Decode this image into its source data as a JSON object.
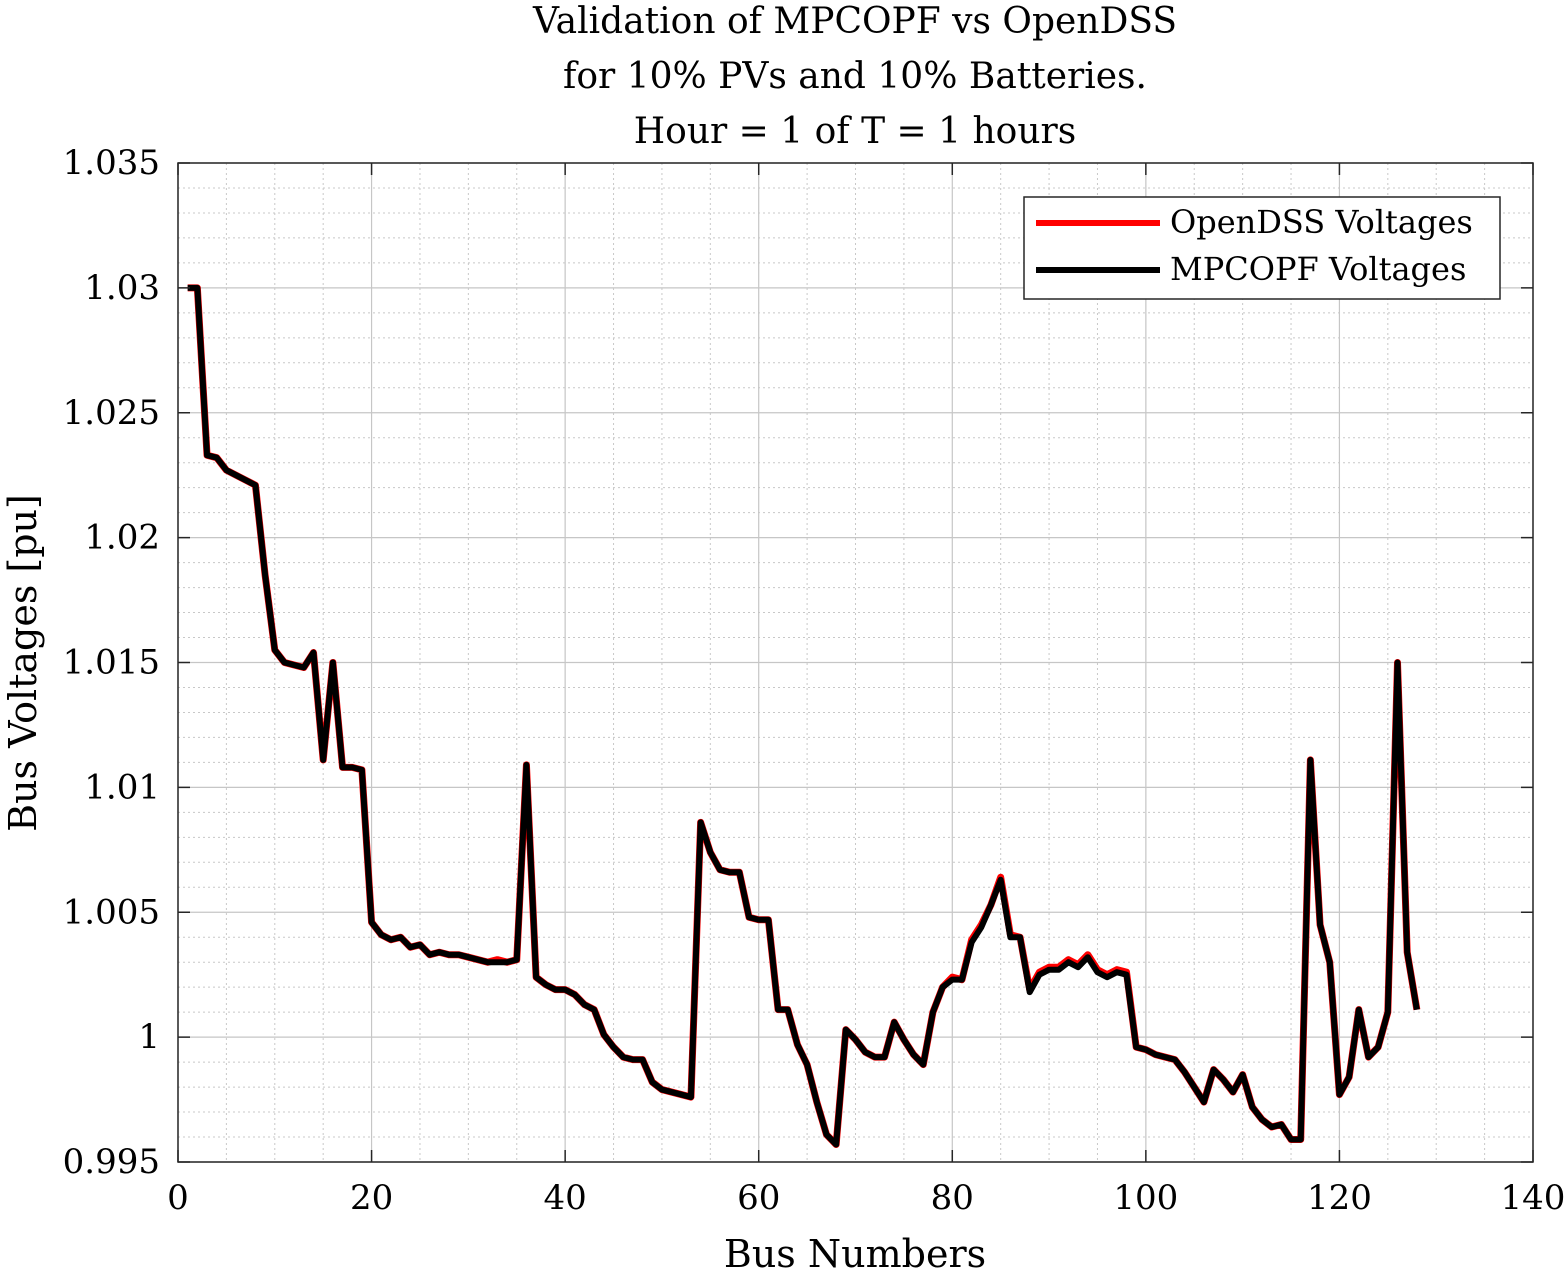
{
  "chart_data": {
    "type": "line",
    "title": [
      "Validation of MPCOPF vs OpenDSS",
      "for 10% PVs and 10% Batteries.",
      "Hour = 1 of T = 1 hours"
    ],
    "xlabel": "Bus Numbers",
    "ylabel": "Bus Voltages [pu]",
    "xlim": [
      0,
      140
    ],
    "ylim": [
      0.995,
      1.035
    ],
    "xticks": [
      0,
      20,
      40,
      60,
      80,
      100,
      120,
      140
    ],
    "xtick_labels": [
      "0",
      "20",
      "40",
      "60",
      "80",
      "100",
      "120",
      "140"
    ],
    "yticks": [
      0.995,
      1.0,
      1.005,
      1.01,
      1.015,
      1.02,
      1.025,
      1.03,
      1.035
    ],
    "ytick_labels": [
      "0.995",
      "1",
      "1.005",
      "1.01",
      "1.015",
      "1.02",
      "1.025",
      "1.03",
      "1.035"
    ],
    "grid": "on (major and minor)",
    "legend_position": "top-right",
    "x": [
      1,
      2,
      3,
      4,
      5,
      6,
      7,
      8,
      9,
      10,
      11,
      12,
      13,
      14,
      15,
      16,
      17,
      18,
      19,
      20,
      21,
      22,
      23,
      24,
      25,
      26,
      27,
      28,
      29,
      30,
      31,
      32,
      33,
      34,
      35,
      36,
      37,
      38,
      39,
      40,
      41,
      42,
      43,
      44,
      45,
      46,
      47,
      48,
      49,
      50,
      51,
      52,
      53,
      54,
      55,
      56,
      57,
      58,
      59,
      60,
      61,
      62,
      63,
      64,
      65,
      66,
      67,
      68,
      69,
      70,
      71,
      72,
      73,
      74,
      75,
      76,
      77,
      78,
      79,
      80,
      81,
      82,
      83,
      84,
      85,
      86,
      87,
      88,
      89,
      90,
      91,
      92,
      93,
      94,
      95,
      96,
      97,
      98,
      99,
      100,
      101,
      102,
      103,
      104,
      105,
      106,
      107,
      108,
      109,
      110,
      111,
      112,
      113,
      114,
      115,
      116,
      117,
      118,
      119,
      120,
      121,
      122,
      123,
      124,
      125,
      126,
      127,
      128
    ],
    "series": [
      {
        "name": "OpenDSS Voltages",
        "color": "#ff0000",
        "values": [
          1.03,
          1.03,
          1.0233,
          1.0232,
          1.0227,
          1.0225,
          1.0223,
          1.0221,
          1.0185,
          1.0155,
          1.015,
          1.0149,
          1.0148,
          1.0154,
          1.0111,
          1.015,
          1.0108,
          1.0108,
          1.0107,
          1.0046,
          1.0041,
          1.0039,
          1.004,
          1.0036,
          1.0037,
          1.0033,
          1.0034,
          1.0033,
          1.0033,
          1.0032,
          1.0031,
          1.003,
          1.0031,
          1.003,
          1.0031,
          1.0109,
          1.0024,
          1.0021,
          1.0019,
          1.0019,
          1.0017,
          1.0013,
          1.0011,
          1.0001,
          0.9996,
          0.9992,
          0.9991,
          0.9991,
          0.9982,
          0.9979,
          0.9978,
          0.9977,
          0.9976,
          1.0086,
          1.0074,
          1.0067,
          1.0066,
          1.0066,
          1.0048,
          1.0047,
          1.0047,
          1.0011,
          1.0011,
          0.9997,
          0.9989,
          0.9974,
          0.9961,
          0.9957,
          1.0003,
          0.9999,
          0.9994,
          0.9992,
          0.9992,
          1.0006,
          0.9999,
          0.9993,
          0.9989,
          1.001,
          1.002,
          1.0024,
          1.0023,
          1.0039,
          1.0045,
          1.0053,
          1.0064,
          1.0041,
          1.004,
          1.0019,
          1.0026,
          1.0028,
          1.0028,
          1.0031,
          1.0029,
          1.0033,
          1.0027,
          1.0025,
          1.0027,
          1.0026,
          0.9996,
          0.9995,
          0.9993,
          0.9992,
          0.9991,
          0.9986,
          0.998,
          0.9974,
          0.9987,
          0.9983,
          0.9978,
          0.9985,
          0.9972,
          0.9967,
          0.9964,
          0.9965,
          0.9959,
          0.9959,
          1.0111,
          1.0045,
          1.003,
          0.9977,
          0.9984,
          1.0011,
          0.9992,
          0.9996,
          1.001,
          1.015,
          1.0034,
          1.0011
        ]
      },
      {
        "name": "MPCOPF Voltages",
        "color": "#000000",
        "values": [
          1.03,
          1.03,
          1.0233,
          1.0232,
          1.0227,
          1.0225,
          1.0223,
          1.0221,
          1.0185,
          1.0155,
          1.015,
          1.0149,
          1.0148,
          1.0154,
          1.0111,
          1.015,
          1.0108,
          1.0108,
          1.0107,
          1.0046,
          1.0041,
          1.0039,
          1.004,
          1.0036,
          1.0037,
          1.0033,
          1.0034,
          1.0033,
          1.0033,
          1.0032,
          1.0031,
          1.003,
          1.003,
          1.003,
          1.0031,
          1.0109,
          1.0024,
          1.0021,
          1.0019,
          1.0019,
          1.0017,
          1.0013,
          1.0011,
          1.0001,
          0.9996,
          0.9992,
          0.9991,
          0.9991,
          0.9982,
          0.9979,
          0.9978,
          0.9977,
          0.9976,
          1.0086,
          1.0074,
          1.0067,
          1.0066,
          1.0066,
          1.0048,
          1.0047,
          1.0047,
          1.0011,
          1.0011,
          0.9997,
          0.9989,
          0.9974,
          0.9961,
          0.9957,
          1.0003,
          0.9999,
          0.9994,
          0.9992,
          0.9992,
          1.0006,
          0.9999,
          0.9993,
          0.9989,
          1.001,
          1.002,
          1.0023,
          1.0023,
          1.0038,
          1.0044,
          1.0053,
          1.0063,
          1.004,
          1.004,
          1.0018,
          1.0025,
          1.0027,
          1.0027,
          1.003,
          1.0028,
          1.0032,
          1.0026,
          1.0024,
          1.0026,
          1.0025,
          0.9996,
          0.9995,
          0.9993,
          0.9992,
          0.9991,
          0.9986,
          0.998,
          0.9974,
          0.9987,
          0.9983,
          0.9978,
          0.9985,
          0.9972,
          0.9967,
          0.9964,
          0.9965,
          0.9959,
          0.9959,
          1.0111,
          1.0045,
          1.003,
          0.9977,
          0.9984,
          1.0011,
          0.9992,
          0.9996,
          1.001,
          1.015,
          1.0034,
          1.0011
        ]
      }
    ]
  }
}
